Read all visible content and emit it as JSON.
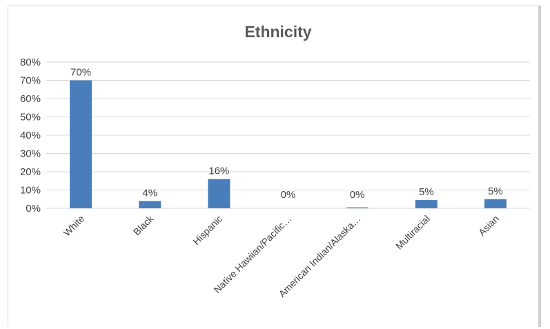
{
  "chart_data": {
    "type": "bar",
    "title": "Ethnicity",
    "xlabel": "",
    "ylabel": "",
    "categories": [
      "White",
      "Black",
      "Hispanic",
      "Native Hawiian/Pacific…",
      "American Indian/Alaska…",
      "Multiracial",
      "Asian"
    ],
    "values": [
      70,
      4,
      16,
      0,
      0.5,
      4.5,
      5
    ],
    "data_labels": [
      "70%",
      "4%",
      "16%",
      "0%",
      "0%",
      "5%",
      "5%"
    ],
    "yticks": [
      "0%",
      "10%",
      "20%",
      "30%",
      "40%",
      "50%",
      "60%",
      "70%",
      "80%"
    ],
    "ylim": [
      0,
      80
    ],
    "grid": true,
    "legend": "none",
    "bar_color": "#4a7ebb",
    "grid_color": "#d9d9d9"
  }
}
